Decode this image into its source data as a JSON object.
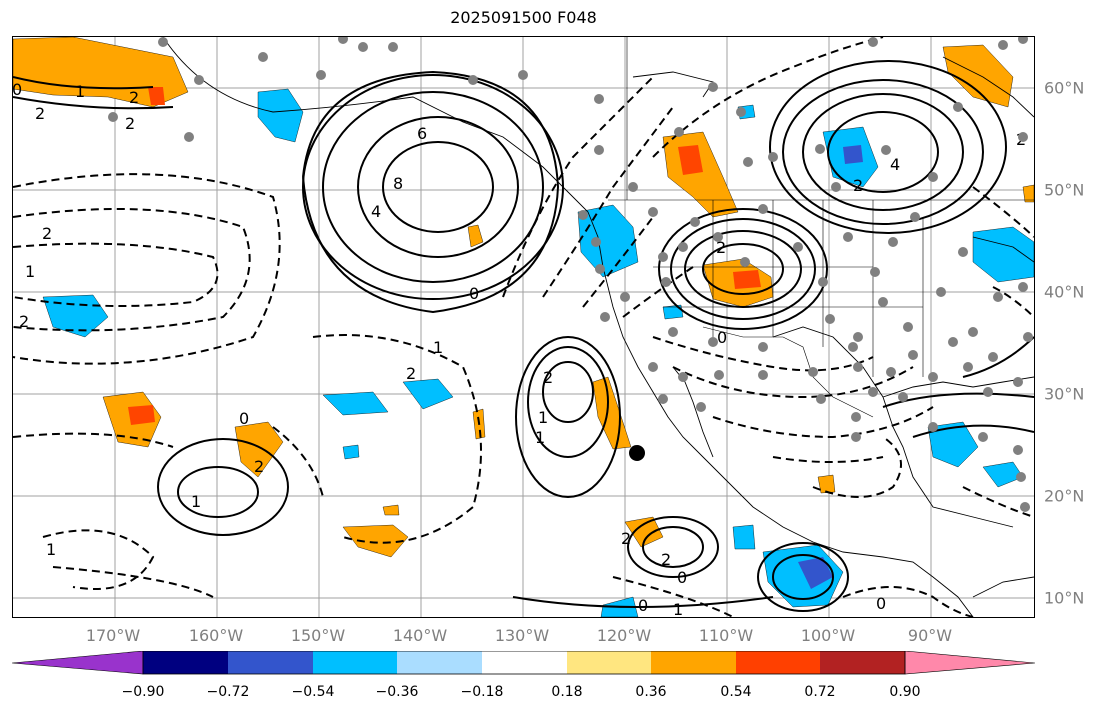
{
  "title": "2025091500 F048",
  "longitude_labels": [
    "170°W",
    "160°W",
    "150°W",
    "140°W",
    "130°W",
    "120°W",
    "110°W",
    "100°W",
    "90°W"
  ],
  "latitude_labels": [
    "60°N",
    "50°N",
    "40°N",
    "30°N",
    "20°N",
    "10°N"
  ],
  "contour_labels": [
    "0",
    "2",
    "1",
    "2",
    "2",
    "6",
    "8",
    "4",
    "4",
    "2",
    "2",
    "2",
    "1",
    "2",
    "0",
    "1",
    "2",
    "2",
    "1",
    "1",
    "0",
    "1",
    "2",
    "2",
    "0",
    "2",
    "0",
    "1",
    "2",
    "0",
    "1",
    "0"
  ],
  "colorbar": {
    "tick_labels": [
      "−0.90",
      "−0.72",
      "−0.54",
      "−0.36",
      "−0.18",
      "0.18",
      "0.36",
      "0.54",
      "0.72",
      "0.90"
    ],
    "colors": [
      "#9933cc",
      "#000080",
      "#3355cc",
      "#00bfff",
      "#aaddff",
      "#ffffff",
      "#ffe680",
      "#ffa500",
      "#ff4000",
      "#b22222",
      "#ff88aa"
    ],
    "positive_fill": "#ffa500",
    "strong_positive_fill": "#ff4500",
    "negative_fill": "#00bfff",
    "strong_negative_fill": "#3355cc"
  },
  "station_color": "#808080",
  "marker_color": "#000000"
}
